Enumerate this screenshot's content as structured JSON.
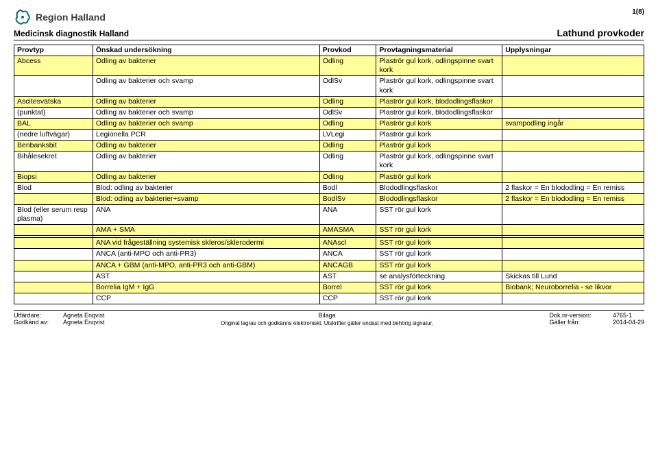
{
  "header": {
    "region_text": "Region Halland",
    "page_count": "1(8)",
    "department": "Medicinsk diagnostik Halland",
    "doc_title": "Lathund provkoder"
  },
  "table": {
    "headers": [
      "Provtyp",
      "Önskad undersökning",
      "Provkod",
      "Provtagningsmaterial",
      "Upplysningar"
    ],
    "rows": [
      {
        "shade": "yellow",
        "cells": [
          "Abcess",
          "Odling av bakterier",
          "Odling",
          "Plaströr gul kork, odlingspinne svart kork",
          ""
        ]
      },
      {
        "shade": "white",
        "cells": [
          "",
          "Odling av bakterier och svamp",
          "OdlSv",
          "Plaströr gul kork, odlingspinne svart kork",
          ""
        ]
      },
      {
        "shade": "yellow",
        "cells": [
          "Ascitesvätska",
          "Odling av bakterier",
          "Odling",
          "Plaströr gul kork, blododlingsflaskor",
          ""
        ]
      },
      {
        "shade": "white",
        "cells": [
          "(punktat)",
          "Odling av bakterier och svamp",
          "OdlSv",
          "Plaströr gul kork, blododlingsflaskor",
          ""
        ]
      },
      {
        "shade": "yellow",
        "cells": [
          "BAL",
          "Odling av bakterier och svamp",
          "Odling",
          "Plaströr gul kork",
          "svampodling ingår"
        ]
      },
      {
        "shade": "white",
        "cells": [
          "(nedre luftvägar)",
          "Legionella PCR",
          "LVLegi",
          "Plaströr gul kork",
          ""
        ]
      },
      {
        "shade": "yellow",
        "cells": [
          "Benbanksbit",
          "Odling av bakterier",
          "Odling",
          "Plaströr gul kork",
          ""
        ]
      },
      {
        "shade": "white",
        "cells": [
          "Bihålesekret",
          "Odling av bakterier",
          "Odling",
          "Plaströr gul kork, odlingspinne svart kork",
          ""
        ]
      },
      {
        "shade": "yellow",
        "cells": [
          "Biopsi",
          "Odling av bakterier",
          "Odling",
          "Plaströr gul kork",
          ""
        ]
      },
      {
        "shade": "white",
        "cells": [
          "Blod",
          "Blod: odling av bakterier",
          "Bodl",
          "Blododlingsflaskor",
          "2 flaskor = En blododling = En remiss"
        ]
      },
      {
        "shade": "yellow",
        "cells": [
          "",
          "Blod: odling av bakterier+svamp",
          "BodlSv",
          "Blododlingsflaskor",
          "2 flaskor = En blododling = En remiss"
        ]
      },
      {
        "shade": "white",
        "cells": [
          "Blod (eller serum resp plasma)",
          "ANA",
          "ANA",
          "SST rör gul kork",
          ""
        ]
      },
      {
        "shade": "yellow",
        "cells": [
          "",
          "AMA + SMA",
          "AMASMA",
          "SST rör gul kork",
          ""
        ]
      },
      {
        "shade": "white",
        "cells": [
          "",
          "",
          "",
          "",
          ""
        ]
      },
      {
        "shade": "yellow",
        "cells": [
          "",
          "ANA vid frågeställning systemisk skleros/sklerodermi",
          "ANAscl",
          "SST rör gul kork",
          ""
        ]
      },
      {
        "shade": "white",
        "cells": [
          "",
          "ANCA  (anti-MPO och anti-PR3)",
          "ANCA",
          "SST rör gul kork",
          ""
        ]
      },
      {
        "shade": "yellow",
        "cells": [
          "",
          "ANCA + GBM (anti-MPO, anti-PR3 och anti-GBM)",
          "ANCAGB",
          "SST rör gul kork",
          ""
        ]
      },
      {
        "shade": "white",
        "cells": [
          "",
          "AST",
          "AST",
          "se analysförteckning",
          "Skickas till Lund"
        ]
      },
      {
        "shade": "yellow",
        "cells": [
          "",
          "Borrelia IgM + IgG",
          "Borrel",
          "SST rör gul kork",
          "Biobank; Neuroborrelia  -  se likvor"
        ]
      },
      {
        "shade": "white",
        "cells": [
          "",
          "CCP",
          "CCP",
          "SST rör gul kork",
          ""
        ]
      }
    ]
  },
  "footer": {
    "issued_by_label": "Utfärdare:",
    "issued_by": "Agneta Enqvist",
    "approved_by_label": "Godkänd av:",
    "approved_by": "Agneta Enqvist",
    "center_top": "Bilaga",
    "center_note": "Original lagras och godkänns elektroniskt. Utskrifter gäller endast med behörig signatur.",
    "docnr_label": "Dok.nr-version:",
    "docnr": "4765-1",
    "valid_label": "Gäller från:",
    "valid": "2014-04-29"
  }
}
